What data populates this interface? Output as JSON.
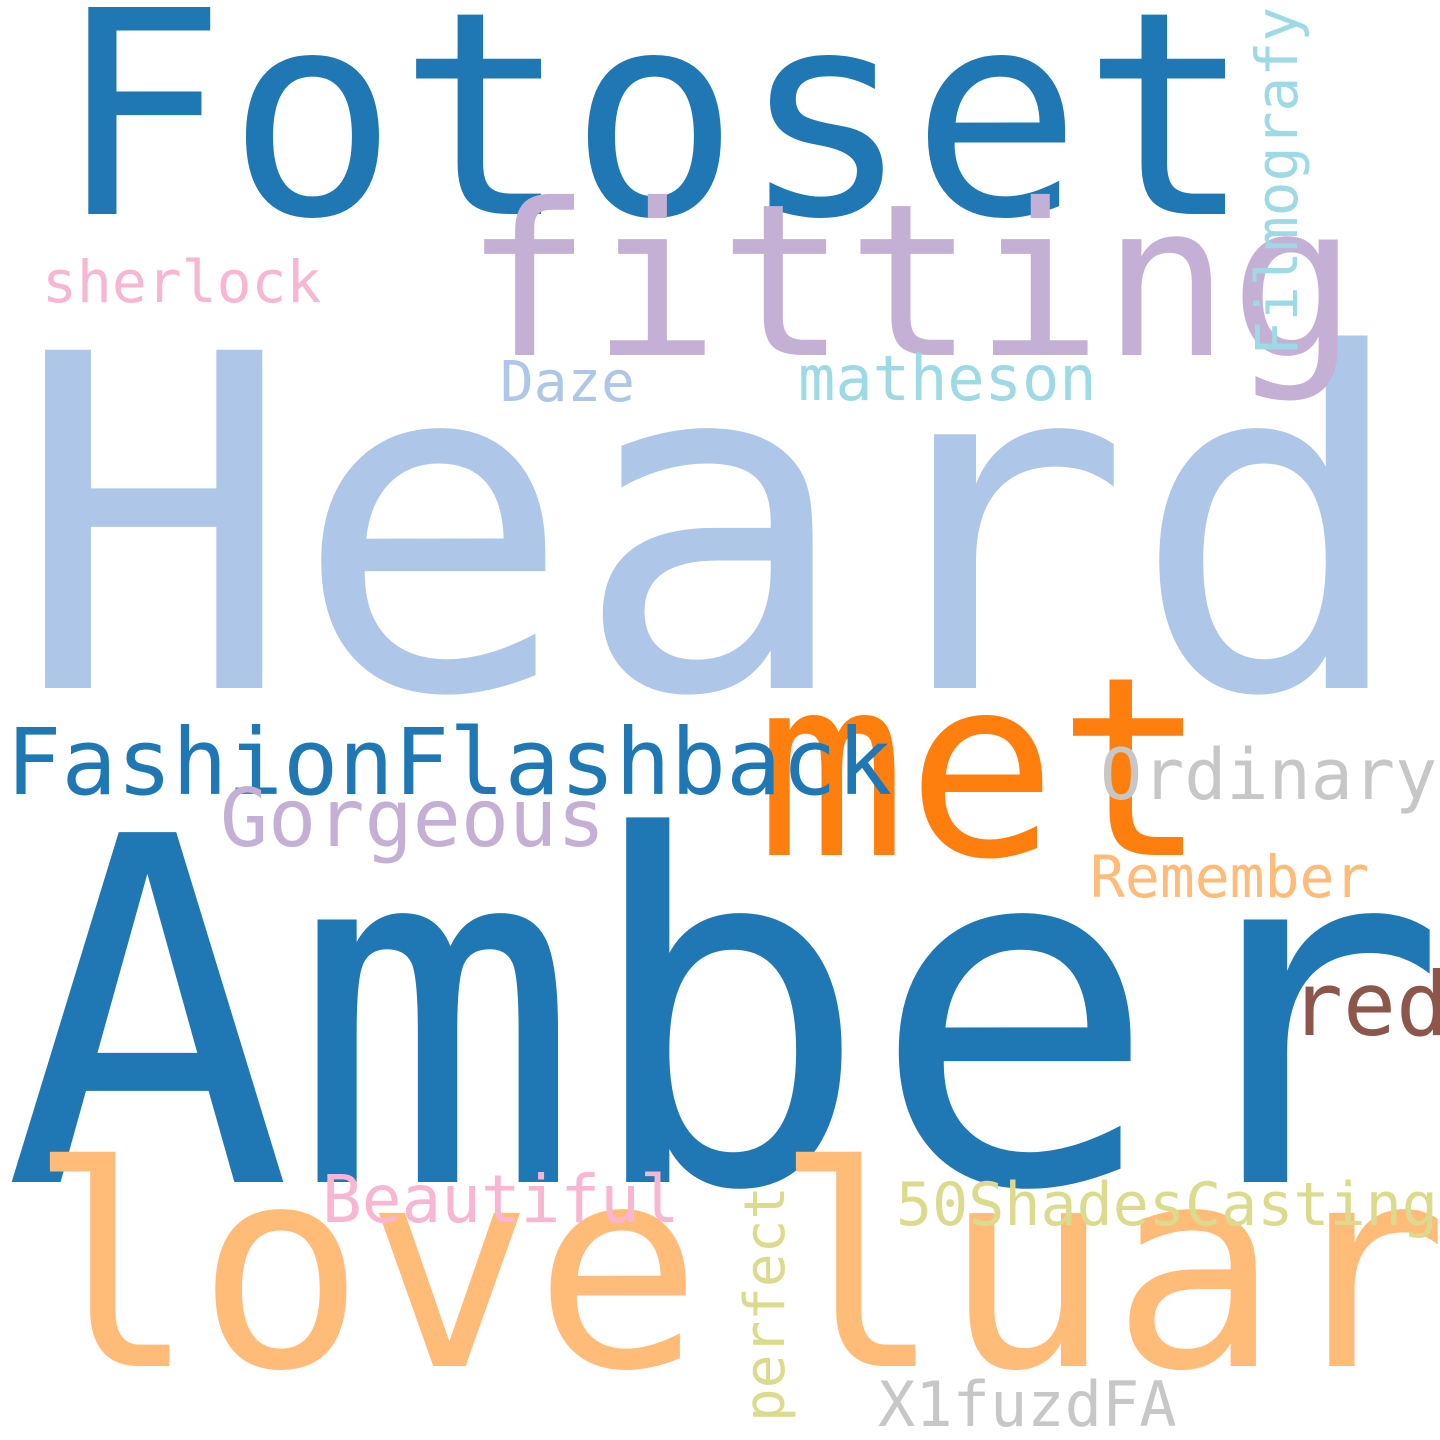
{
  "words": {
    "heard": {
      "text": "Heard",
      "color": "#aec7e8"
    },
    "amber": {
      "text": "Amber",
      "color": "#1f77b4"
    },
    "fotoset": {
      "text": "Fotoset",
      "color": "#1f77b4"
    },
    "fitting": {
      "text": "fitting",
      "color": "#c5b0d5"
    },
    "met": {
      "text": "met",
      "color": "#ff7f0e"
    },
    "love": {
      "text": "love",
      "color": "#ffbb78"
    },
    "luar": {
      "text": "luar",
      "color": "#ffbb78"
    },
    "fashionflashback": {
      "text": "FashionFlashback",
      "color": "#1f77b4"
    },
    "gorgeous": {
      "text": "Gorgeous",
      "color": "#c5b0d5"
    },
    "ordinary": {
      "text": "Ordinary",
      "color": "#c7c7c7"
    },
    "remember": {
      "text": "Remember",
      "color": "#ffbb78"
    },
    "red": {
      "text": "red",
      "color": "#8c564b"
    },
    "sherlock": {
      "text": "sherlock",
      "color": "#f7b6d2"
    },
    "daze": {
      "text": "Daze",
      "color": "#aec7e8"
    },
    "matheson": {
      "text": "matheson",
      "color": "#9edae5"
    },
    "filmografy": {
      "text": "Filmografy",
      "color": "#9edae5"
    },
    "beautiful": {
      "text": "Beautiful",
      "color": "#f7b6d2"
    },
    "shadescasting": {
      "text": "50ShadesCasting",
      "color": "#dbdb8d"
    },
    "perfect": {
      "text": "perfect",
      "color": "#dbdb8d"
    },
    "x1fuzdfa": {
      "text": "X1fuzdFA",
      "color": "#c7c7c7"
    }
  }
}
